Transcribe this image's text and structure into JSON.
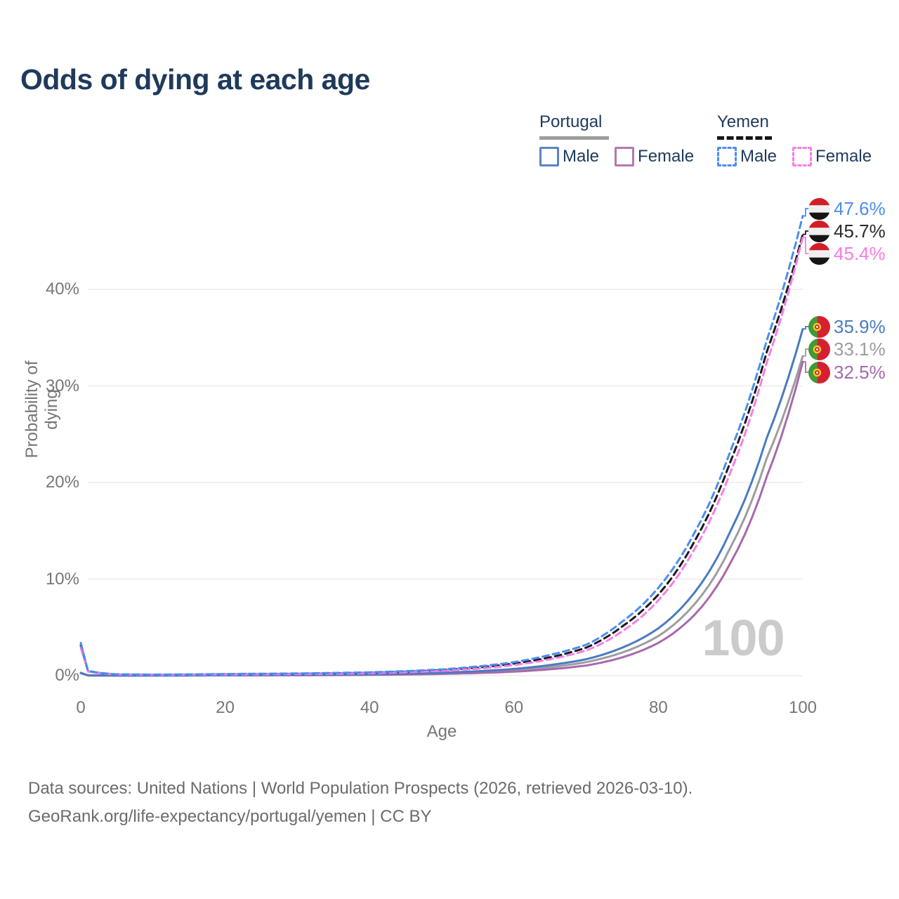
{
  "title": "Odds of dying at each age",
  "legend": {
    "portugal": {
      "label": "Portugal",
      "male": "Male",
      "female": "Female"
    },
    "yemen": {
      "label": "Yemen",
      "male": "Male",
      "female": "Female"
    }
  },
  "watermark_age": "100",
  "axes": {
    "x_title": "Age",
    "y_title": "Probability of dying",
    "x_ticks": [
      {
        "label": "0",
        "value": 0
      },
      {
        "label": "20",
        "value": 20
      },
      {
        "label": "40",
        "value": 40
      },
      {
        "label": "60",
        "value": 60
      },
      {
        "label": "80",
        "value": 80
      },
      {
        "label": "100",
        "value": 100
      }
    ],
    "y_ticks": [
      {
        "label": "0%",
        "value": 0
      },
      {
        "label": "10%",
        "value": 10
      },
      {
        "label": "20%",
        "value": 20
      },
      {
        "label": "30%",
        "value": 30
      },
      {
        "label": "40%",
        "value": 40
      }
    ]
  },
  "end_labels": [
    {
      "series": "yemen_male",
      "flag": "yemen",
      "value": "47.6%"
    },
    {
      "series": "yemen_both",
      "flag": "yemen",
      "value": "45.7%"
    },
    {
      "series": "yemen_female",
      "flag": "yemen",
      "value": "45.4%"
    },
    {
      "series": "portugal_male",
      "flag": "portugal",
      "value": "35.9%"
    },
    {
      "series": "portugal_both",
      "flag": "portugal",
      "value": "33.1%"
    },
    {
      "series": "portugal_female",
      "flag": "portugal",
      "value": "32.5%"
    }
  ],
  "footer": {
    "line1": "Data sources: United Nations | World Population Prospects (2026, retrieved 2026-03-10).",
    "line2": "GeoRank.org/life-expectancy/portugal/yemen | CC BY"
  },
  "colors": {
    "title_text": "#1e3a5c",
    "legend_text": "#1e3a5c",
    "axis_text": "#767676",
    "grid": "#ebebeb",
    "watermark": "#cbcbcb",
    "portugal_male": "#4a7bbf",
    "portugal_female": "#a868ad",
    "portugal_both": "#9d9d9d",
    "yemen_male": "#4a8df2",
    "yemen_female": "#f87ce6",
    "yemen_both": "#1a1a1a",
    "yemen_both_label_text": "#2a2a2a",
    "flag_yemen_red": "#d21e28",
    "flag_yemen_white": "#efefef",
    "flag_yemen_black": "#151515",
    "flag_portugal_green": "#3f9b35",
    "flag_portugal_red": "#d62031",
    "flag_portugal_yellow": "#f5c91c"
  },
  "chart_data": {
    "type": "line",
    "title": "Odds of dying at each age",
    "xlabel": "Age",
    "ylabel": "Probability of dying",
    "xlim": [
      0,
      100
    ],
    "ylim": [
      0,
      48
    ],
    "grid": "horizontal",
    "legend_position": "top-right",
    "x_tick_values": [
      0,
      20,
      40,
      60,
      80,
      100
    ],
    "y_tick_labels": [
      "0%",
      "10%",
      "20%",
      "30%",
      "40%"
    ],
    "ages": [
      0,
      1,
      5,
      10,
      15,
      20,
      25,
      30,
      35,
      40,
      45,
      50,
      55,
      60,
      65,
      70,
      75,
      80,
      85,
      90,
      95,
      100
    ],
    "series": [
      {
        "name": "Portugal Both sexes",
        "key": "portugal_both",
        "style": "solid",
        "values": [
          0.28,
          0.03,
          0.01,
          0.01,
          0.03,
          0.04,
          0.05,
          0.06,
          0.08,
          0.11,
          0.16,
          0.24,
          0.36,
          0.55,
          0.88,
          1.4,
          2.4,
          4.1,
          7.4,
          13.3,
          22.5,
          33.1
        ]
      },
      {
        "name": "Portugal Female",
        "key": "portugal_female",
        "style": "solid",
        "values": [
          0.25,
          0.02,
          0.01,
          0.01,
          0.02,
          0.03,
          0.03,
          0.04,
          0.06,
          0.08,
          0.12,
          0.18,
          0.27,
          0.42,
          0.66,
          1.05,
          1.9,
          3.4,
          6.3,
          11.7,
          20.6,
          32.5
        ]
      },
      {
        "name": "Portugal Male",
        "key": "portugal_male",
        "style": "solid",
        "values": [
          0.3,
          0.03,
          0.01,
          0.01,
          0.03,
          0.05,
          0.07,
          0.08,
          0.1,
          0.14,
          0.21,
          0.31,
          0.46,
          0.7,
          1.1,
          1.7,
          2.9,
          4.9,
          8.6,
          15.0,
          24.6,
          35.9
        ]
      },
      {
        "name": "Yemen Both sexes",
        "key": "yemen_both",
        "style": "dashed",
        "values": [
          3.15,
          0.46,
          0.13,
          0.1,
          0.12,
          0.15,
          0.17,
          0.2,
          0.24,
          0.31,
          0.42,
          0.58,
          0.84,
          1.25,
          1.9,
          2.9,
          5.1,
          8.4,
          13.9,
          22.2,
          33.5,
          45.7
        ]
      },
      {
        "name": "Yemen Female",
        "key": "yemen_female",
        "style": "dashed",
        "values": [
          2.9,
          0.42,
          0.12,
          0.09,
          0.1,
          0.12,
          0.14,
          0.16,
          0.2,
          0.26,
          0.36,
          0.5,
          0.72,
          1.1,
          1.7,
          2.6,
          4.6,
          7.8,
          13.1,
          21.1,
          32.4,
          45.4
        ]
      },
      {
        "name": "Yemen Male",
        "key": "yemen_male",
        "style": "dashed",
        "values": [
          3.4,
          0.5,
          0.14,
          0.11,
          0.13,
          0.17,
          0.2,
          0.23,
          0.28,
          0.35,
          0.47,
          0.65,
          0.95,
          1.4,
          2.15,
          3.2,
          5.6,
          9.1,
          14.8,
          23.3,
          34.7,
          47.6
        ]
      }
    ],
    "end_values_pct": {
      "yemen_male": 47.6,
      "yemen_both": 45.7,
      "yemen_female": 45.4,
      "portugal_male": 35.9,
      "portugal_both": 33.1,
      "portugal_female": 32.5
    }
  }
}
